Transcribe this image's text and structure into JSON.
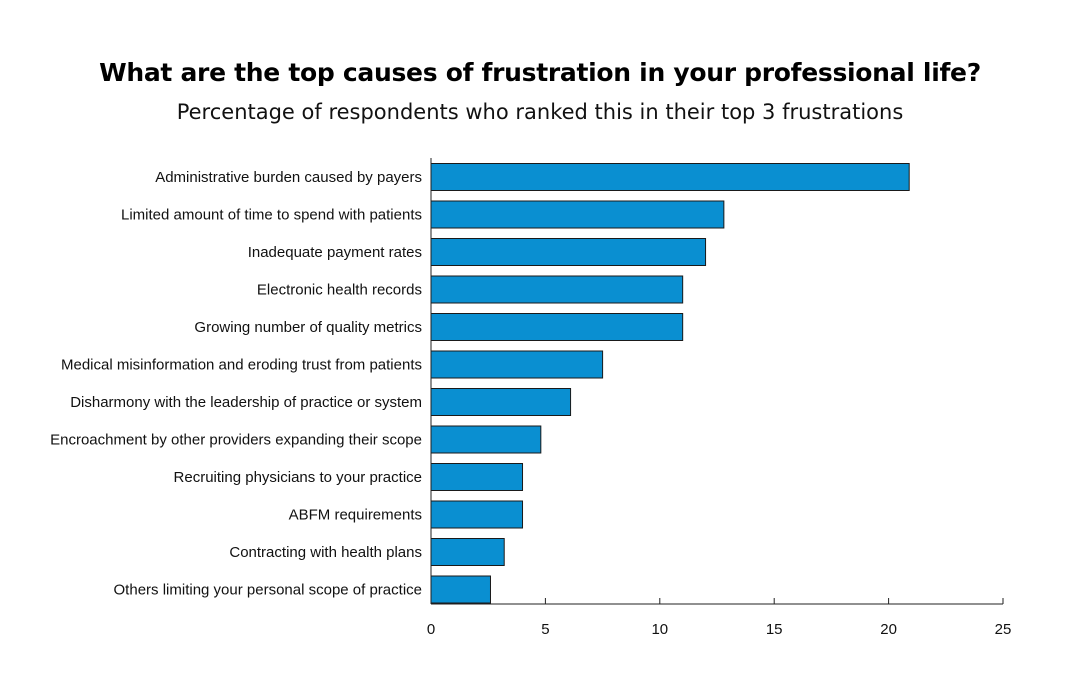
{
  "title": "What are the top causes of frustration in your professional life?",
  "subtitle": "Percentage of respondents who ranked this in their top 3 frustrations",
  "colors": {
    "bar_fill": "#0a8fd1",
    "bar_stroke": "#1a1a1a",
    "axis": "#222222"
  },
  "chart_data": {
    "type": "bar",
    "orientation": "horizontal",
    "categories": [
      "Administrative burden caused by payers",
      "Limited amount of time to spend with patients",
      "Inadequate payment rates",
      "Electronic health records",
      "Growing number of quality metrics",
      "Medical misinformation and eroding trust from patients",
      "Disharmony with the leadership of practice or system",
      "Encroachment by other providers expanding their scope",
      "Recruiting physicians to your practice",
      "ABFM requirements",
      "Contracting with health plans",
      "Others limiting your personal scope of practice"
    ],
    "values": [
      20.9,
      12.8,
      12.0,
      11.0,
      11.0,
      7.5,
      6.1,
      4.8,
      4.0,
      4.0,
      3.2,
      2.6
    ],
    "xlim": [
      0,
      25
    ],
    "xticks": [
      0,
      5,
      10,
      15,
      20,
      25
    ],
    "grid": false,
    "legend": "none"
  }
}
